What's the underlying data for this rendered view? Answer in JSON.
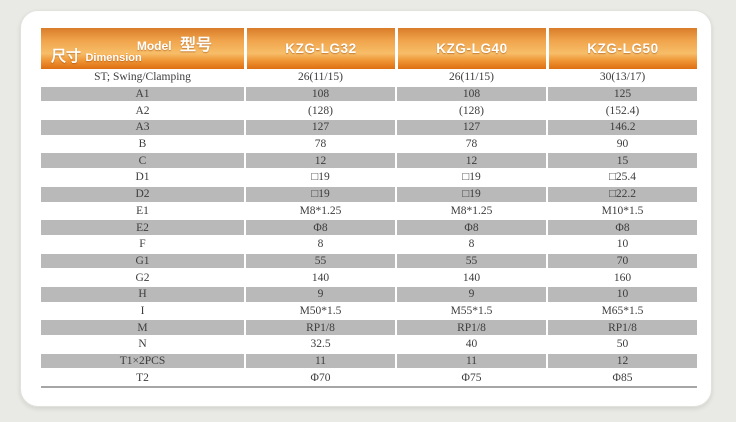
{
  "header": {
    "corner": {
      "model_en": "Model",
      "model_cn": "型号",
      "dim_cn": "尺寸",
      "dim_en": "Dimension"
    },
    "columns": [
      "KZG-LG32",
      "KZG-LG40",
      "KZG-LG50"
    ]
  },
  "rows": [
    {
      "param": "ST; Swing/Clamping",
      "values": [
        "26(11/15)",
        "26(11/15)",
        "30(13/17)"
      ],
      "shaded": false
    },
    {
      "param": "A1",
      "values": [
        "108",
        "108",
        "125"
      ],
      "shaded": true
    },
    {
      "param": "A2",
      "values": [
        "(128)",
        "(128)",
        "(152.4)"
      ],
      "shaded": false
    },
    {
      "param": "A3",
      "values": [
        "127",
        "127",
        "146.2"
      ],
      "shaded": true
    },
    {
      "param": "B",
      "values": [
        "78",
        "78",
        "90"
      ],
      "shaded": false
    },
    {
      "param": "C",
      "values": [
        "12",
        "12",
        "15"
      ],
      "shaded": true
    },
    {
      "param": "D1",
      "values": [
        "□19",
        "□19",
        "□25.4"
      ],
      "shaded": false
    },
    {
      "param": "D2",
      "values": [
        "□19",
        "□19",
        "□22.2"
      ],
      "shaded": true
    },
    {
      "param": "E1",
      "values": [
        "M8*1.25",
        "M8*1.25",
        "M10*1.5"
      ],
      "shaded": false
    },
    {
      "param": "E2",
      "values": [
        "Φ8",
        "Φ8",
        "Φ8"
      ],
      "shaded": true
    },
    {
      "param": "F",
      "values": [
        "8",
        "8",
        "10"
      ],
      "shaded": false
    },
    {
      "param": "G1",
      "values": [
        "55",
        "55",
        "70"
      ],
      "shaded": true
    },
    {
      "param": "G2",
      "values": [
        "140",
        "140",
        "160"
      ],
      "shaded": false
    },
    {
      "param": "H",
      "values": [
        "9",
        "9",
        "10"
      ],
      "shaded": true
    },
    {
      "param": "I",
      "values": [
        "M50*1.5",
        "M55*1.5",
        "M65*1.5"
      ],
      "shaded": false
    },
    {
      "param": "M",
      "values": [
        "RP1/8",
        "RP1/8",
        "RP1/8"
      ],
      "shaded": true
    },
    {
      "param": "N",
      "values": [
        "32.5",
        "40",
        "50"
      ],
      "shaded": false
    },
    {
      "param": "T1×2PCS",
      "values": [
        "11",
        "11",
        "12"
      ],
      "shaded": true
    },
    {
      "param": "T2",
      "values": [
        "Φ70",
        "Φ75",
        "Φ85"
      ],
      "shaded": false
    }
  ],
  "colors": {
    "page_bg": "#e9eae5",
    "card_bg": "#ffffff",
    "shaded_row": "#b9b9b9",
    "text": "#3c3c3c",
    "header_text": "#ffffff",
    "orange_top": "#d97c2a",
    "orange_light1": "#f0a44c",
    "orange_light2": "#f7bd68",
    "orange_bottom": "#dd6f12"
  }
}
